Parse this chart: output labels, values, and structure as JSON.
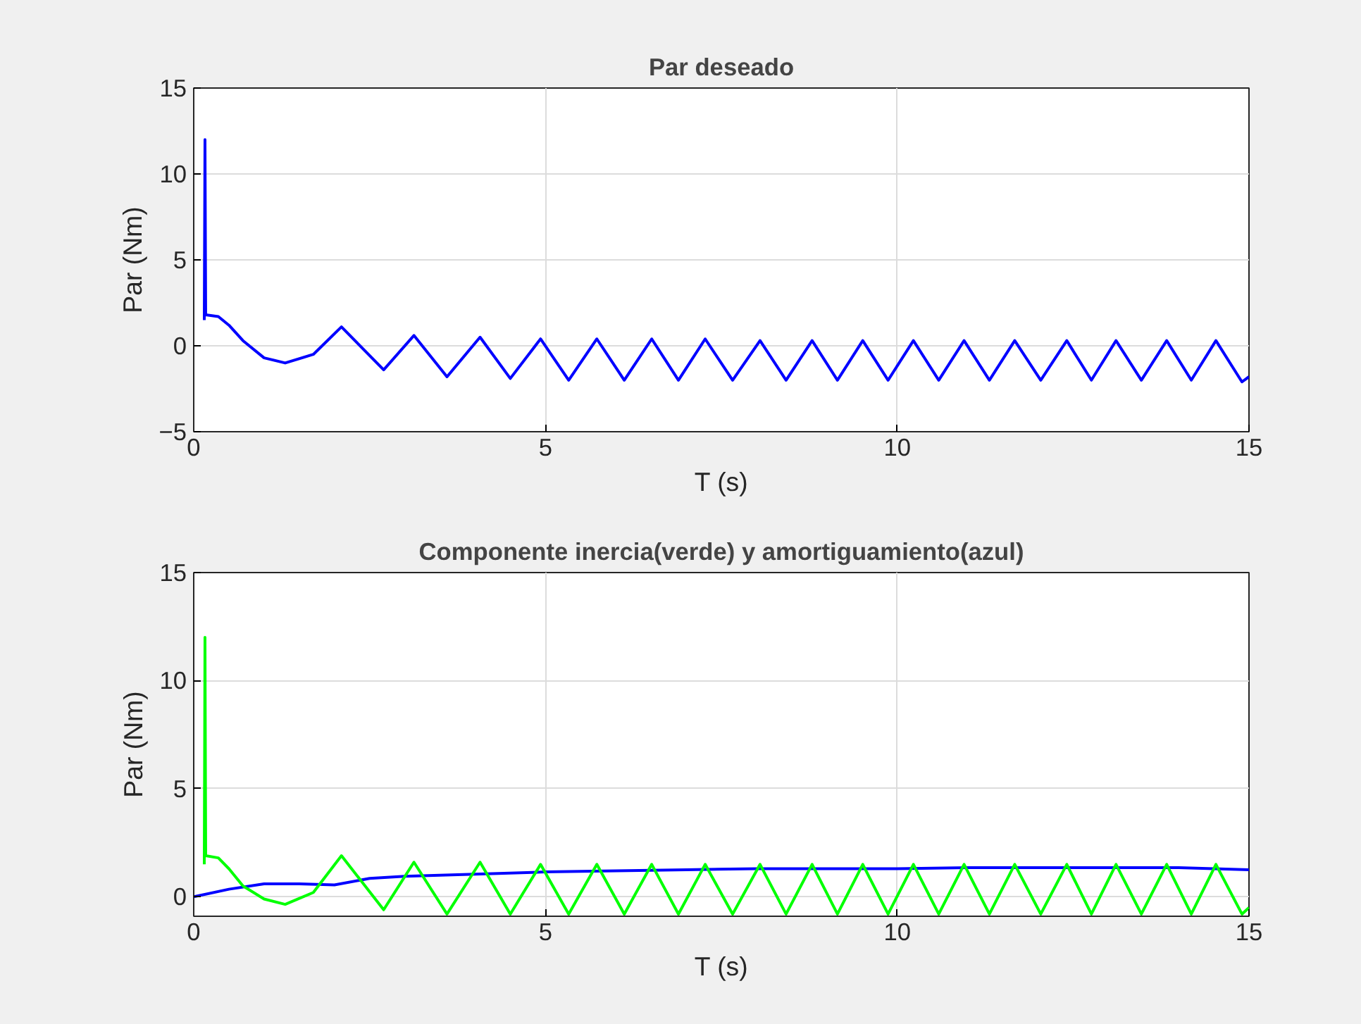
{
  "chart_data": [
    {
      "type": "line",
      "title": "Par deseado",
      "xlabel": "T (s)",
      "ylabel": "Par (Nm)",
      "xlim": [
        0,
        15
      ],
      "ylim": [
        -5,
        15
      ],
      "xticks": [
        0,
        5,
        10,
        15
      ],
      "yticks": [
        -5,
        0,
        5,
        10,
        15
      ],
      "grid": true,
      "series": [
        {
          "color": "#0000ff",
          "x": [
            0.15,
            0.16,
            0.17,
            0.35,
            0.5,
            0.7,
            1.0,
            1.3,
            1.7,
            2.1,
            2.7,
            3.13,
            3.6,
            4.07,
            4.5,
            4.93,
            5.33,
            5.73,
            6.12,
            6.51,
            6.89,
            7.27,
            7.66,
            8.05,
            8.42,
            8.79,
            9.15,
            9.51,
            9.87,
            10.23,
            10.59,
            10.95,
            11.31,
            11.67,
            12.04,
            12.41,
            12.76,
            13.11,
            13.47,
            13.83,
            14.18,
            14.53,
            14.9,
            15
          ],
          "values": [
            1.5,
            12,
            1.8,
            1.7,
            1.2,
            0.3,
            -0.7,
            -1.0,
            -0.5,
            1.1,
            -1.4,
            0.6,
            -1.8,
            0.5,
            -1.9,
            0.4,
            -2.0,
            0.4,
            -2.0,
            0.4,
            -2.0,
            0.4,
            -2.0,
            0.3,
            -2.0,
            0.3,
            -2.0,
            0.3,
            -2.0,
            0.3,
            -2.0,
            0.3,
            -2.0,
            0.3,
            -2.0,
            0.3,
            -2.0,
            0.3,
            -2.0,
            0.3,
            -2.0,
            0.3,
            -2.1,
            -1.8
          ]
        }
      ]
    },
    {
      "type": "line",
      "title": "Componente inercia(verde) y amortiguamiento(azul)",
      "xlabel": "T (s)",
      "ylabel": "Par (Nm)",
      "xlim": [
        0,
        15
      ],
      "ylim": [
        -0.9,
        15
      ],
      "xticks": [
        0,
        5,
        10,
        15
      ],
      "yticks": [
        0,
        5,
        10,
        15
      ],
      "grid": true,
      "series": [
        {
          "color": "#0000ff",
          "x": [
            0,
            0.5,
            1,
            1.5,
            2,
            2.5,
            3,
            4,
            5,
            6,
            7,
            8,
            9,
            10,
            11,
            12,
            13,
            14,
            15
          ],
          "values": [
            0,
            0.35,
            0.6,
            0.6,
            0.55,
            0.85,
            0.95,
            1.05,
            1.15,
            1.2,
            1.25,
            1.3,
            1.3,
            1.3,
            1.35,
            1.35,
            1.35,
            1.35,
            1.25
          ]
        },
        {
          "color": "#00ff00",
          "x": [
            0.15,
            0.16,
            0.17,
            0.35,
            0.5,
            0.7,
            1.0,
            1.3,
            1.7,
            2.1,
            2.7,
            3.13,
            3.6,
            4.07,
            4.5,
            4.93,
            5.33,
            5.73,
            6.12,
            6.51,
            6.89,
            7.27,
            7.66,
            8.05,
            8.42,
            8.79,
            9.15,
            9.51,
            9.87,
            10.23,
            10.59,
            10.95,
            11.31,
            11.67,
            12.04,
            12.41,
            12.76,
            13.11,
            13.47,
            13.83,
            14.18,
            14.53,
            14.9,
            15
          ],
          "values": [
            1.5,
            12,
            1.9,
            1.8,
            1.3,
            0.5,
            -0.1,
            -0.35,
            0.2,
            1.9,
            -0.6,
            1.6,
            -0.8,
            1.6,
            -0.8,
            1.5,
            -0.8,
            1.5,
            -0.8,
            1.5,
            -0.8,
            1.5,
            -0.8,
            1.5,
            -0.8,
            1.5,
            -0.8,
            1.5,
            -0.8,
            1.5,
            -0.8,
            1.5,
            -0.8,
            1.5,
            -0.8,
            1.5,
            -0.8,
            1.5,
            -0.8,
            1.5,
            -0.8,
            1.5,
            -0.8,
            -0.5
          ]
        }
      ]
    }
  ]
}
